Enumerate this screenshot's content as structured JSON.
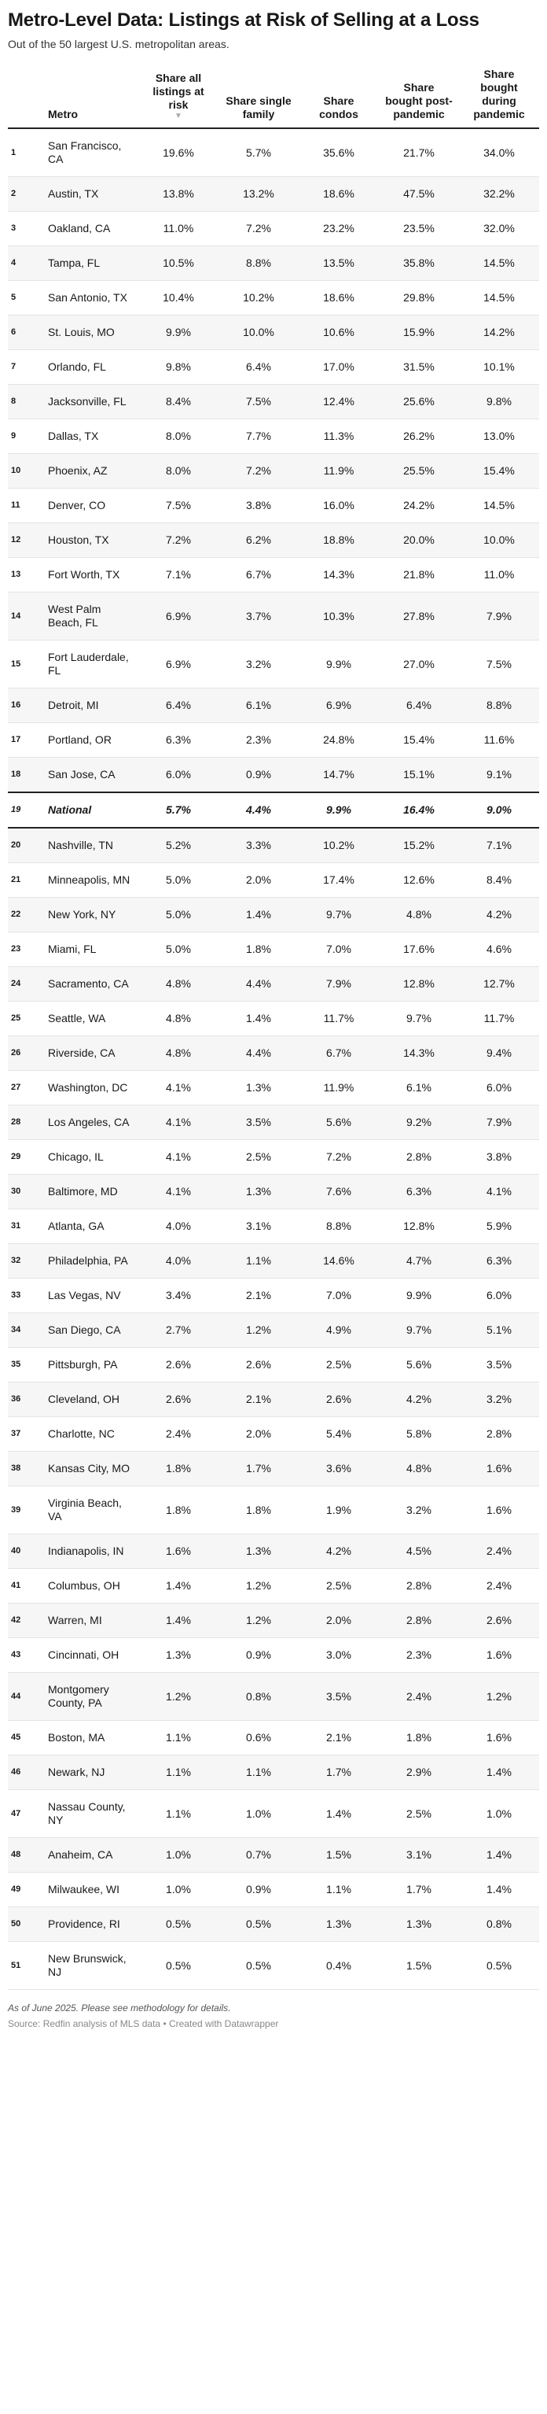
{
  "header": {
    "title": "Metro-Level Data: Listings at Risk of Selling at a Loss",
    "subtitle": "Out of the 50 largest U.S. metropolitan areas."
  },
  "table": {
    "columns": [
      "",
      "Metro",
      "Share all listings at risk",
      "Share single family",
      "Share condos",
      "Share bought post-pandemic",
      "Share bought during pandemic"
    ],
    "highlight_row": 18,
    "rows": [
      [
        1,
        "San Francisco, CA",
        "19.6%",
        "5.7%",
        "35.6%",
        "21.7%",
        "34.0%"
      ],
      [
        2,
        "Austin, TX",
        "13.8%",
        "13.2%",
        "18.6%",
        "47.5%",
        "32.2%"
      ],
      [
        3,
        "Oakland, CA",
        "11.0%",
        "7.2%",
        "23.2%",
        "23.5%",
        "32.0%"
      ],
      [
        4,
        "Tampa, FL",
        "10.5%",
        "8.8%",
        "13.5%",
        "35.8%",
        "14.5%"
      ],
      [
        5,
        "San Antonio, TX",
        "10.4%",
        "10.2%",
        "18.6%",
        "29.8%",
        "14.5%"
      ],
      [
        6,
        "St. Louis, MO",
        "9.9%",
        "10.0%",
        "10.6%",
        "15.9%",
        "14.2%"
      ],
      [
        7,
        "Orlando, FL",
        "9.8%",
        "6.4%",
        "17.0%",
        "31.5%",
        "10.1%"
      ],
      [
        8,
        "Jacksonville, FL",
        "8.4%",
        "7.5%",
        "12.4%",
        "25.6%",
        "9.8%"
      ],
      [
        9,
        "Dallas, TX",
        "8.0%",
        "7.7%",
        "11.3%",
        "26.2%",
        "13.0%"
      ],
      [
        10,
        "Phoenix, AZ",
        "8.0%",
        "7.2%",
        "11.9%",
        "25.5%",
        "15.4%"
      ],
      [
        11,
        "Denver, CO",
        "7.5%",
        "3.8%",
        "16.0%",
        "24.2%",
        "14.5%"
      ],
      [
        12,
        "Houston, TX",
        "7.2%",
        "6.2%",
        "18.8%",
        "20.0%",
        "10.0%"
      ],
      [
        13,
        "Fort Worth, TX",
        "7.1%",
        "6.7%",
        "14.3%",
        "21.8%",
        "11.0%"
      ],
      [
        14,
        "West Palm Beach, FL",
        "6.9%",
        "3.7%",
        "10.3%",
        "27.8%",
        "7.9%"
      ],
      [
        15,
        "Fort Lauderdale, FL",
        "6.9%",
        "3.2%",
        "9.9%",
        "27.0%",
        "7.5%"
      ],
      [
        16,
        "Detroit, MI",
        "6.4%",
        "6.1%",
        "6.9%",
        "6.4%",
        "8.8%"
      ],
      [
        17,
        "Portland, OR",
        "6.3%",
        "2.3%",
        "24.8%",
        "15.4%",
        "11.6%"
      ],
      [
        18,
        "San Jose, CA",
        "6.0%",
        "0.9%",
        "14.7%",
        "15.1%",
        "9.1%"
      ],
      [
        19,
        "National",
        "5.7%",
        "4.4%",
        "9.9%",
        "16.4%",
        "9.0%"
      ],
      [
        20,
        "Nashville, TN",
        "5.2%",
        "3.3%",
        "10.2%",
        "15.2%",
        "7.1%"
      ],
      [
        21,
        "Minneapolis, MN",
        "5.0%",
        "2.0%",
        "17.4%",
        "12.6%",
        "8.4%"
      ],
      [
        22,
        "New York, NY",
        "5.0%",
        "1.4%",
        "9.7%",
        "4.8%",
        "4.2%"
      ],
      [
        23,
        "Miami, FL",
        "5.0%",
        "1.8%",
        "7.0%",
        "17.6%",
        "4.6%"
      ],
      [
        24,
        "Sacramento, CA",
        "4.8%",
        "4.4%",
        "7.9%",
        "12.8%",
        "12.7%"
      ],
      [
        25,
        "Seattle, WA",
        "4.8%",
        "1.4%",
        "11.7%",
        "9.7%",
        "11.7%"
      ],
      [
        26,
        "Riverside, CA",
        "4.8%",
        "4.4%",
        "6.7%",
        "14.3%",
        "9.4%"
      ],
      [
        27,
        "Washington, DC",
        "4.1%",
        "1.3%",
        "11.9%",
        "6.1%",
        "6.0%"
      ],
      [
        28,
        "Los Angeles, CA",
        "4.1%",
        "3.5%",
        "5.6%",
        "9.2%",
        "7.9%"
      ],
      [
        29,
        "Chicago, IL",
        "4.1%",
        "2.5%",
        "7.2%",
        "2.8%",
        "3.8%"
      ],
      [
        30,
        "Baltimore, MD",
        "4.1%",
        "1.3%",
        "7.6%",
        "6.3%",
        "4.1%"
      ],
      [
        31,
        "Atlanta, GA",
        "4.0%",
        "3.1%",
        "8.8%",
        "12.8%",
        "5.9%"
      ],
      [
        32,
        "Philadelphia, PA",
        "4.0%",
        "1.1%",
        "14.6%",
        "4.7%",
        "6.3%"
      ],
      [
        33,
        "Las Vegas, NV",
        "3.4%",
        "2.1%",
        "7.0%",
        "9.9%",
        "6.0%"
      ],
      [
        34,
        "San Diego, CA",
        "2.7%",
        "1.2%",
        "4.9%",
        "9.7%",
        "5.1%"
      ],
      [
        35,
        "Pittsburgh, PA",
        "2.6%",
        "2.6%",
        "2.5%",
        "5.6%",
        "3.5%"
      ],
      [
        36,
        "Cleveland, OH",
        "2.6%",
        "2.1%",
        "2.6%",
        "4.2%",
        "3.2%"
      ],
      [
        37,
        "Charlotte, NC",
        "2.4%",
        "2.0%",
        "5.4%",
        "5.8%",
        "2.8%"
      ],
      [
        38,
        "Kansas City, MO",
        "1.8%",
        "1.7%",
        "3.6%",
        "4.8%",
        "1.6%"
      ],
      [
        39,
        "Virginia Beach, VA",
        "1.8%",
        "1.8%",
        "1.9%",
        "3.2%",
        "1.6%"
      ],
      [
        40,
        "Indianapolis, IN",
        "1.6%",
        "1.3%",
        "4.2%",
        "4.5%",
        "2.4%"
      ],
      [
        41,
        "Columbus, OH",
        "1.4%",
        "1.2%",
        "2.5%",
        "2.8%",
        "2.4%"
      ],
      [
        42,
        "Warren, MI",
        "1.4%",
        "1.2%",
        "2.0%",
        "2.8%",
        "2.6%"
      ],
      [
        43,
        "Cincinnati, OH",
        "1.3%",
        "0.9%",
        "3.0%",
        "2.3%",
        "1.6%"
      ],
      [
        44,
        "Montgomery County, PA",
        "1.2%",
        "0.8%",
        "3.5%",
        "2.4%",
        "1.2%"
      ],
      [
        45,
        "Boston, MA",
        "1.1%",
        "0.6%",
        "2.1%",
        "1.8%",
        "1.6%"
      ],
      [
        46,
        "Newark, NJ",
        "1.1%",
        "1.1%",
        "1.7%",
        "2.9%",
        "1.4%"
      ],
      [
        47,
        "Nassau County, NY",
        "1.1%",
        "1.0%",
        "1.4%",
        "2.5%",
        "1.0%"
      ],
      [
        48,
        "Anaheim, CA",
        "1.0%",
        "0.7%",
        "1.5%",
        "3.1%",
        "1.4%"
      ],
      [
        49,
        "Milwaukee, WI",
        "1.0%",
        "0.9%",
        "1.1%",
        "1.7%",
        "1.4%"
      ],
      [
        50,
        "Providence, RI",
        "0.5%",
        "0.5%",
        "1.3%",
        "1.3%",
        "0.8%"
      ],
      [
        51,
        "New Brunswick, NJ",
        "0.5%",
        "0.5%",
        "0.4%",
        "1.5%",
        "0.5%"
      ]
    ]
  },
  "footer": {
    "note": "As of June 2025. Please see methodology for details.",
    "source": "Source: Redfin analysis of MLS data • Created with Datawrapper"
  }
}
